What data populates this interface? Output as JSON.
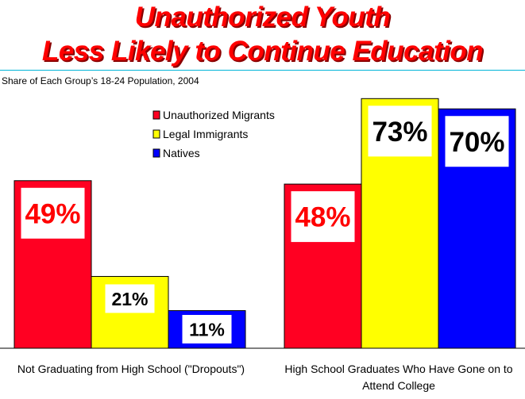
{
  "chart_data": {
    "type": "bar",
    "title": [
      "Unauthorized Youth",
      "Less Likely to Continue Education"
    ],
    "subtitle": "Share of Each Group’s 18-24 Population, 2004",
    "categories": [
      [
        "Not Graduating from High School (\"Dropouts\")"
      ],
      [
        "High School Graduates Who Have Gone on to",
        "Attend College"
      ]
    ],
    "series": [
      {
        "name": "Unauthorized Migrants",
        "values": [
          49,
          48
        ],
        "labels": [
          "49%",
          "48%"
        ],
        "color": "#ff0022",
        "label_color": "#ff0000"
      },
      {
        "name": "Legal Immigrants",
        "values": [
          21,
          73
        ],
        "labels": [
          "21%",
          "73%"
        ],
        "color": "#ffff00",
        "label_color": "#000000"
      },
      {
        "name": "Natives",
        "values": [
          11,
          70
        ],
        "labels": [
          "11%",
          "70%"
        ],
        "color": "#0000ff",
        "label_color": "#000000"
      }
    ],
    "ylim": [
      0,
      74
    ],
    "grid": false,
    "legend_position": "top-center"
  }
}
